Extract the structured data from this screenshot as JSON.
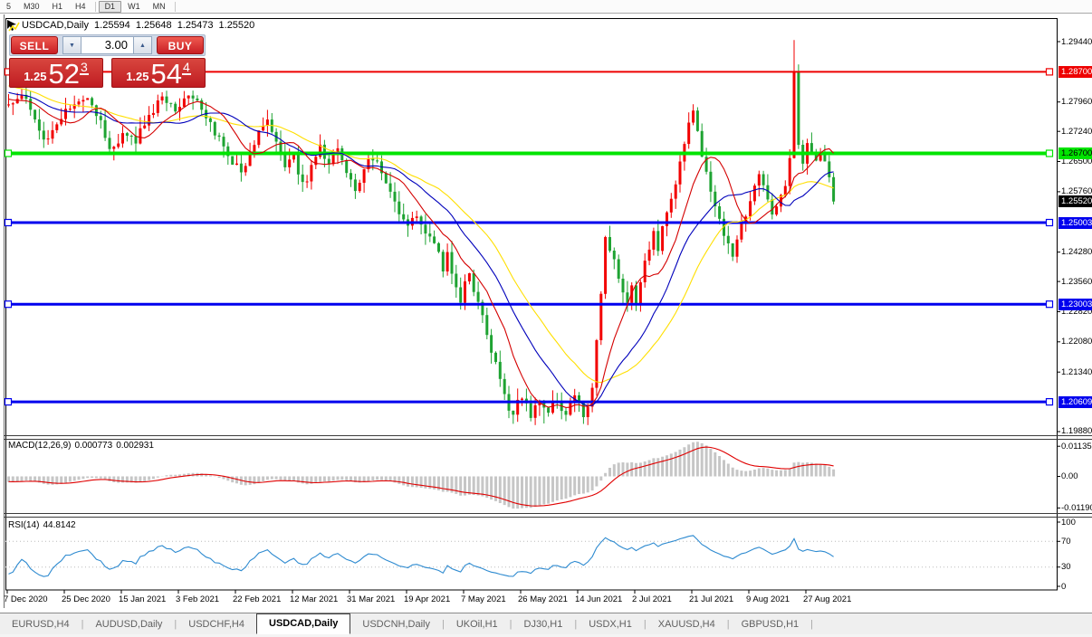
{
  "toolbar": {
    "timeframes": [
      "5",
      "M30",
      "H1",
      "H4",
      "D1",
      "W1",
      "MN"
    ],
    "selected": "D1"
  },
  "title": {
    "symbol": "USDCAD,Daily",
    "open": "1.25594",
    "high": "1.25648",
    "low": "1.25473",
    "close": "1.25520"
  },
  "trade_panel": {
    "sell_label": "SELL",
    "buy_label": "BUY",
    "volume": "3.00",
    "sell_quote": {
      "prefix": "1.25",
      "big": "52",
      "sup": "3"
    },
    "buy_quote": {
      "prefix": "1.25",
      "big": "54",
      "sup": "4"
    }
  },
  "icons": {
    "spinner_up": "▲",
    "spinner_down": "▼",
    "tab_scroll_left": "◄",
    "tab_scroll_right": "►"
  },
  "price_axis": {
    "ticks": [
      {
        "value": 1.2944,
        "text": "1.29440"
      },
      {
        "value": 1.2796,
        "text": "1.27960"
      },
      {
        "value": 1.2724,
        "text": "1.27240"
      },
      {
        "value": 1.265,
        "text": "1.26500"
      },
      {
        "value": 1.2576,
        "text": "1.25760"
      },
      {
        "value": 1.2428,
        "text": "1.24280"
      },
      {
        "value": 1.2356,
        "text": "1.23560"
      },
      {
        "value": 1.2282,
        "text": "1.22820"
      },
      {
        "value": 1.2208,
        "text": "1.22080"
      },
      {
        "value": 1.2134,
        "text": "1.21340"
      },
      {
        "value": 1.1988,
        "text": "1.19880"
      }
    ],
    "current": {
      "value": 1.2552,
      "text": "1.25520",
      "bg": "#000000",
      "fg": "#ffffff"
    }
  },
  "date_axis": [
    "7 Dec 2020",
    "25 Dec 2020",
    "15 Jan 2021",
    "3 Feb 2021",
    "22 Feb 2021",
    "12 Mar 2021",
    "31 Mar 2021",
    "19 Apr 2021",
    "7 May 2021",
    "26 May 2021",
    "14 Jun 2021",
    "2 Jul 2021",
    "21 Jul 2021",
    "9 Aug 2021",
    "27 Aug 2021"
  ],
  "macd_panel": {
    "label": "MACD(12,26,9)",
    "main_value": "0.000773",
    "signal_value": "0.002931",
    "axis": [
      {
        "value": 0.01135,
        "text": "0.01135"
      },
      {
        "value": 0,
        "text": "0.00"
      },
      {
        "value": -0.0119,
        "text": "-0.01190"
      }
    ],
    "histogram_color": "#c6c6c6",
    "signal_color": "#e00000"
  },
  "rsi_panel": {
    "label": "RSI(14)",
    "value": "44.8142",
    "axis": [
      {
        "value": 100,
        "text": "100"
      },
      {
        "value": 70,
        "text": "70"
      },
      {
        "value": 30,
        "text": "30"
      },
      {
        "value": 0,
        "text": "0"
      }
    ],
    "guide_levels": [
      70,
      30
    ],
    "line_color": "#2d8ad0",
    "guide_color": "#bcbcbc"
  },
  "tabs": {
    "items": [
      "EURUSD,H4",
      "AUDUSD,Daily",
      "USDCHF,H4",
      "USDCAD,Daily",
      "USDCNH,Daily",
      "UKOil,H1",
      "DJ30,H1",
      "USDX,H1",
      "XAUUSD,H4",
      "GBPUSD,H1"
    ],
    "active_index": 3
  },
  "chart_data": {
    "type": "candlestick",
    "symbol": "USDCAD",
    "period": "Daily",
    "ohlc_display": {
      "open": 1.25594,
      "high": 1.25648,
      "low": 1.25473,
      "close": 1.2552
    },
    "bid": 1.25523,
    "ask": 1.25544,
    "up_color": "#f20000",
    "down_color": "#1ea332",
    "price_levels": [
      {
        "value": 1.287,
        "color": "#ee0000",
        "width": 2,
        "label_fg": "#ffffff"
      },
      {
        "value": 1.267,
        "color": "#00e400",
        "width": 4,
        "label_fg": "#000000"
      },
      {
        "value": 1.25003,
        "color": "#0000ee",
        "width": 3,
        "label_fg": "#ffffff"
      },
      {
        "value": 1.23003,
        "color": "#0000ee",
        "width": 3,
        "label_fg": "#ffffff"
      },
      {
        "value": 1.20609,
        "color": "#0000ee",
        "width": 3,
        "label_fg": "#ffffff"
      }
    ],
    "moving_averages": [
      {
        "period": 30,
        "color": "#ffdf00"
      },
      {
        "period": 20,
        "color": "#0000bb"
      },
      {
        "period": 10,
        "color": "#d40000"
      }
    ],
    "indicators": [
      {
        "name": "MACD",
        "params": [
          12,
          26,
          9
        ],
        "last_main": 0.000773,
        "last_signal": 0.002931
      },
      {
        "name": "RSI",
        "params": [
          14
        ],
        "last": 44.8142
      }
    ],
    "n_candles": 189,
    "close_anchors": [
      [
        0,
        1.279
      ],
      [
        3,
        1.2822
      ],
      [
        6,
        1.2748
      ],
      [
        9,
        1.27
      ],
      [
        12,
        1.2762
      ],
      [
        15,
        1.28
      ],
      [
        18,
        1.2815
      ],
      [
        21,
        1.274
      ],
      [
        23,
        1.2672
      ],
      [
        26,
        1.2722
      ],
      [
        29,
        1.2705
      ],
      [
        32,
        1.2762
      ],
      [
        35,
        1.2812
      ],
      [
        38,
        1.2772
      ],
      [
        41,
        1.2812
      ],
      [
        44,
        1.2788
      ],
      [
        47,
        1.2722
      ],
      [
        50,
        1.2668
      ],
      [
        53,
        1.2625
      ],
      [
        55,
        1.2665
      ],
      [
        57,
        1.2715
      ],
      [
        59,
        1.2748
      ],
      [
        61,
        1.269
      ],
      [
        63,
        1.2638
      ],
      [
        65,
        1.2668
      ],
      [
        67,
        1.2588
      ],
      [
        69,
        1.2635
      ],
      [
        71,
        1.268
      ],
      [
        73,
        1.2655
      ],
      [
        75,
        1.2678
      ],
      [
        77,
        1.2618
      ],
      [
        79,
        1.2582
      ],
      [
        81,
        1.2635
      ],
      [
        83,
        1.2662
      ],
      [
        85,
        1.2625
      ],
      [
        87,
        1.2572
      ],
      [
        89,
        1.2525
      ],
      [
        91,
        1.2488
      ],
      [
        93,
        1.2525
      ],
      [
        95,
        1.2482
      ],
      [
        97,
        1.2455
      ],
      [
        99,
        1.2388
      ],
      [
        100,
        1.2418
      ],
      [
        101,
        1.2378
      ],
      [
        102,
        1.2332
      ],
      [
        103,
        1.2302
      ],
      [
        104,
        1.2345
      ],
      [
        105,
        1.2385
      ],
      [
        106,
        1.2342
      ],
      [
        107,
        1.2302
      ],
      [
        108,
        1.2265
      ],
      [
        109,
        1.2228
      ],
      [
        110,
        1.2192
      ],
      [
        111,
        1.2152
      ],
      [
        112,
        1.2108
      ],
      [
        113,
        1.2075
      ],
      [
        114,
        1.2048
      ],
      [
        115,
        1.2028
      ],
      [
        116,
        1.2058
      ],
      [
        117,
        1.2075
      ],
      [
        118,
        1.2048
      ],
      [
        119,
        1.2032
      ],
      [
        120,
        1.2055
      ],
      [
        121,
        1.2068
      ],
      [
        122,
        1.2048
      ],
      [
        123,
        1.2028
      ],
      [
        124,
        1.2055
      ],
      [
        125,
        1.2075
      ],
      [
        126,
        1.2048
      ],
      [
        127,
        1.2022
      ],
      [
        128,
        1.2058
      ],
      [
        129,
        1.2088
      ],
      [
        130,
        1.2058
      ],
      [
        131,
        1.2032
      ],
      [
        132,
        1.2042
      ],
      [
        133,
        1.2102
      ],
      [
        134,
        1.2215
      ],
      [
        135,
        1.2322
      ],
      [
        136,
        1.2465
      ],
      [
        137,
        1.2442
      ],
      [
        138,
        1.2405
      ],
      [
        139,
        1.2368
      ],
      [
        140,
        1.2338
      ],
      [
        141,
        1.2308
      ],
      [
        142,
        1.2345
      ],
      [
        143,
        1.2305
      ],
      [
        144,
        1.2352
      ],
      [
        145,
        1.2398
      ],
      [
        146,
        1.2442
      ],
      [
        147,
        1.2468
      ],
      [
        148,
        1.244
      ],
      [
        149,
        1.2482
      ],
      [
        150,
        1.252
      ],
      [
        151,
        1.2556
      ],
      [
        152,
        1.26
      ],
      [
        153,
        1.2648
      ],
      [
        154,
        1.2695
      ],
      [
        155,
        1.2748
      ],
      [
        156,
        1.2775
      ],
      [
        157,
        1.2715
      ],
      [
        158,
        1.2668
      ],
      [
        159,
        1.2628
      ],
      [
        160,
        1.2588
      ],
      [
        161,
        1.2548
      ],
      [
        162,
        1.2512
      ],
      [
        163,
        1.2475
      ],
      [
        164,
        1.2442
      ],
      [
        165,
        1.2418
      ],
      [
        166,
        1.2455
      ],
      [
        167,
        1.2492
      ],
      [
        168,
        1.2522
      ],
      [
        169,
        1.2552
      ],
      [
        170,
        1.2585
      ],
      [
        171,
        1.2612
      ],
      [
        172,
        1.2585
      ],
      [
        173,
        1.2552
      ],
      [
        174,
        1.2518
      ],
      [
        175,
        1.2548
      ],
      [
        176,
        1.2578
      ],
      [
        177,
        1.2602
      ],
      [
        178,
        1.2648
      ],
      [
        179,
        1.2872
      ],
      [
        180,
        1.2682
      ],
      [
        181,
        1.2648
      ],
      [
        182,
        1.2688
      ],
      [
        183,
        1.2665
      ],
      [
        184,
        1.2645
      ],
      [
        185,
        1.267
      ],
      [
        186,
        1.265
      ],
      [
        187,
        1.2618
      ],
      [
        188,
        1.2552
      ]
    ],
    "pinned_closes": {
      "0": 1.279,
      "136": 1.2465,
      "156": 1.2775,
      "179": 1.2872,
      "188": 1.2552
    },
    "special_wicks": {
      "115": {
        "low": 1.2007
      },
      "122": {
        "low": 1.2008
      },
      "179": {
        "high": 1.2948
      },
      "180": {
        "high": 1.2888
      }
    }
  }
}
